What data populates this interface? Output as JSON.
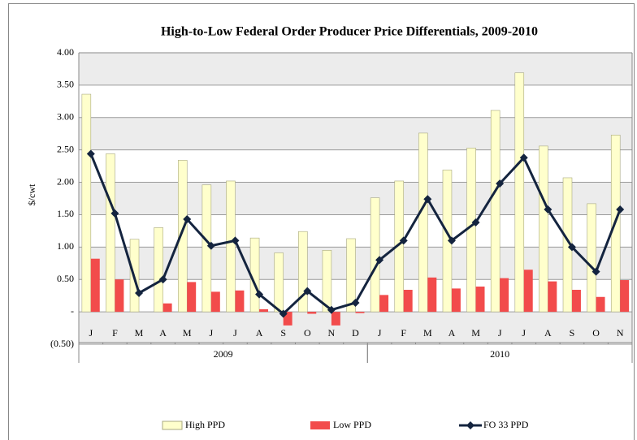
{
  "chart_data": {
    "type": "combo",
    "title": "High-to-Low Federal Order Producer Price Differentials, 2009-2010",
    "y_label": "$/cwt",
    "groups": [
      {
        "name": "2009",
        "categories": [
          "J",
          "F",
          "M",
          "A",
          "M",
          "J",
          "J",
          "A",
          "S",
          "O",
          "N",
          "D"
        ]
      },
      {
        "name": "2010",
        "categories": [
          "J",
          "F",
          "M",
          "A",
          "M",
          "J",
          "J",
          "A",
          "S",
          "O",
          "N"
        ]
      }
    ],
    "series": [
      {
        "name": "High PPD",
        "kind": "bar",
        "color": "#ffffcc",
        "values": [
          3.36,
          2.44,
          1.12,
          1.3,
          2.34,
          1.96,
          2.02,
          1.14,
          0.91,
          1.24,
          0.95,
          1.13,
          1.76,
          2.02,
          2.76,
          2.19,
          2.53,
          3.11,
          3.69,
          2.56,
          2.07,
          1.67,
          2.73
        ]
      },
      {
        "name": "Low PPD",
        "kind": "bar",
        "color": "#f24b4b",
        "values": [
          0.82,
          0.5,
          0.0,
          0.13,
          0.46,
          0.31,
          0.33,
          0.04,
          -0.21,
          -0.03,
          -0.21,
          -0.02,
          0.26,
          0.34,
          0.53,
          0.36,
          0.39,
          0.52,
          0.65,
          0.47,
          0.34,
          0.23,
          0.49
        ]
      },
      {
        "name": "FO 33 PPD",
        "kind": "line",
        "color": "#14243f",
        "values": [
          2.44,
          1.52,
          0.29,
          0.5,
          1.43,
          1.02,
          1.1,
          0.27,
          -0.03,
          0.32,
          0.03,
          0.14,
          0.8,
          1.1,
          1.74,
          1.1,
          1.38,
          1.98,
          2.38,
          1.58,
          1.0,
          0.62,
          1.58
        ]
      }
    ],
    "ylim": [
      -0.5,
      4
    ],
    "yticks": [
      {
        "value": -0.5,
        "label": "(0.50)"
      },
      {
        "value": 0,
        "label": "-"
      },
      {
        "value": 0.5,
        "label": "0.50"
      },
      {
        "value": 1,
        "label": "1.00"
      },
      {
        "value": 1.5,
        "label": "1.50"
      },
      {
        "value": 2,
        "label": "2.00"
      },
      {
        "value": 2.5,
        "label": "2.50"
      },
      {
        "value": 3,
        "label": "3.00"
      },
      {
        "value": 3.5,
        "label": "3.50"
      },
      {
        "value": 4,
        "label": "4.00"
      }
    ],
    "grid": true,
    "legend": "bottom"
  }
}
